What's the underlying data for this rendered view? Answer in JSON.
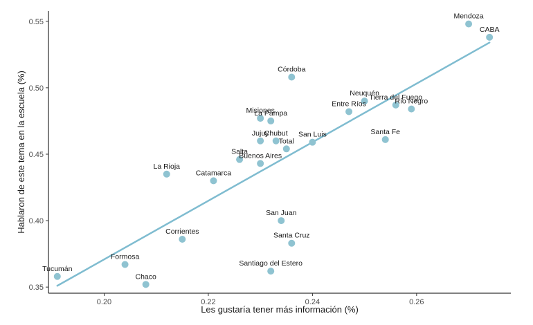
{
  "chart_data": {
    "type": "scatter",
    "title": "",
    "xlabel": "Les gustaría tener más información (%)",
    "ylabel": "Hablaron de este tema en la escuela (%)",
    "xlim": [
      0.1893,
      0.2781
    ],
    "ylim": [
      0.3454,
      0.5577
    ],
    "x_ticks": [
      0.2,
      0.22,
      0.24,
      0.26
    ],
    "x_tick_labels": [
      "0.20",
      "0.22",
      "0.24",
      "0.26"
    ],
    "y_ticks": [
      0.35,
      0.4,
      0.45,
      0.5,
      0.55
    ],
    "y_tick_labels": [
      "0.35",
      "0.40",
      "0.45",
      "0.50",
      "0.55"
    ],
    "grid": false,
    "point_color": "#8fc3d1",
    "line_color": "#7fbcd0",
    "trend_line": {
      "x": [
        0.191,
        0.274
      ],
      "y": [
        0.351,
        0.534
      ]
    },
    "points": [
      {
        "name": "Mendoza",
        "x": 0.27,
        "y": 0.548
      },
      {
        "name": "CABA",
        "x": 0.274,
        "y": 0.538
      },
      {
        "name": "Córdoba",
        "x": 0.236,
        "y": 0.508
      },
      {
        "name": "Neuquén",
        "x": 0.25,
        "y": 0.49
      },
      {
        "name": "Tierra del Fuego",
        "x": 0.256,
        "y": 0.487
      },
      {
        "name": "Río Negro",
        "x": 0.259,
        "y": 0.484
      },
      {
        "name": "Entre Ríos",
        "x": 0.247,
        "y": 0.482
      },
      {
        "name": "Misiones",
        "x": 0.23,
        "y": 0.477
      },
      {
        "name": "La Pampa",
        "x": 0.232,
        "y": 0.475
      },
      {
        "name": "Santa Fe",
        "x": 0.254,
        "y": 0.461
      },
      {
        "name": "Jujuy",
        "x": 0.23,
        "y": 0.46
      },
      {
        "name": "Chubut",
        "x": 0.233,
        "y": 0.46
      },
      {
        "name": "San Luis",
        "x": 0.24,
        "y": 0.459
      },
      {
        "name": "Total",
        "x": 0.235,
        "y": 0.454
      },
      {
        "name": "Salta",
        "x": 0.226,
        "y": 0.446
      },
      {
        "name": "Buenos Aires",
        "x": 0.23,
        "y": 0.443
      },
      {
        "name": "La Rioja",
        "x": 0.212,
        "y": 0.435
      },
      {
        "name": "Catamarca",
        "x": 0.221,
        "y": 0.43
      },
      {
        "name": "San Juan",
        "x": 0.234,
        "y": 0.4
      },
      {
        "name": "Corrientes",
        "x": 0.215,
        "y": 0.386
      },
      {
        "name": "Santa Cruz",
        "x": 0.236,
        "y": 0.383
      },
      {
        "name": "Formosa",
        "x": 0.204,
        "y": 0.367
      },
      {
        "name": "Santiago del Estero",
        "x": 0.232,
        "y": 0.362
      },
      {
        "name": "Tucumán",
        "x": 0.191,
        "y": 0.358
      },
      {
        "name": "Chaco",
        "x": 0.208,
        "y": 0.352
      }
    ]
  }
}
